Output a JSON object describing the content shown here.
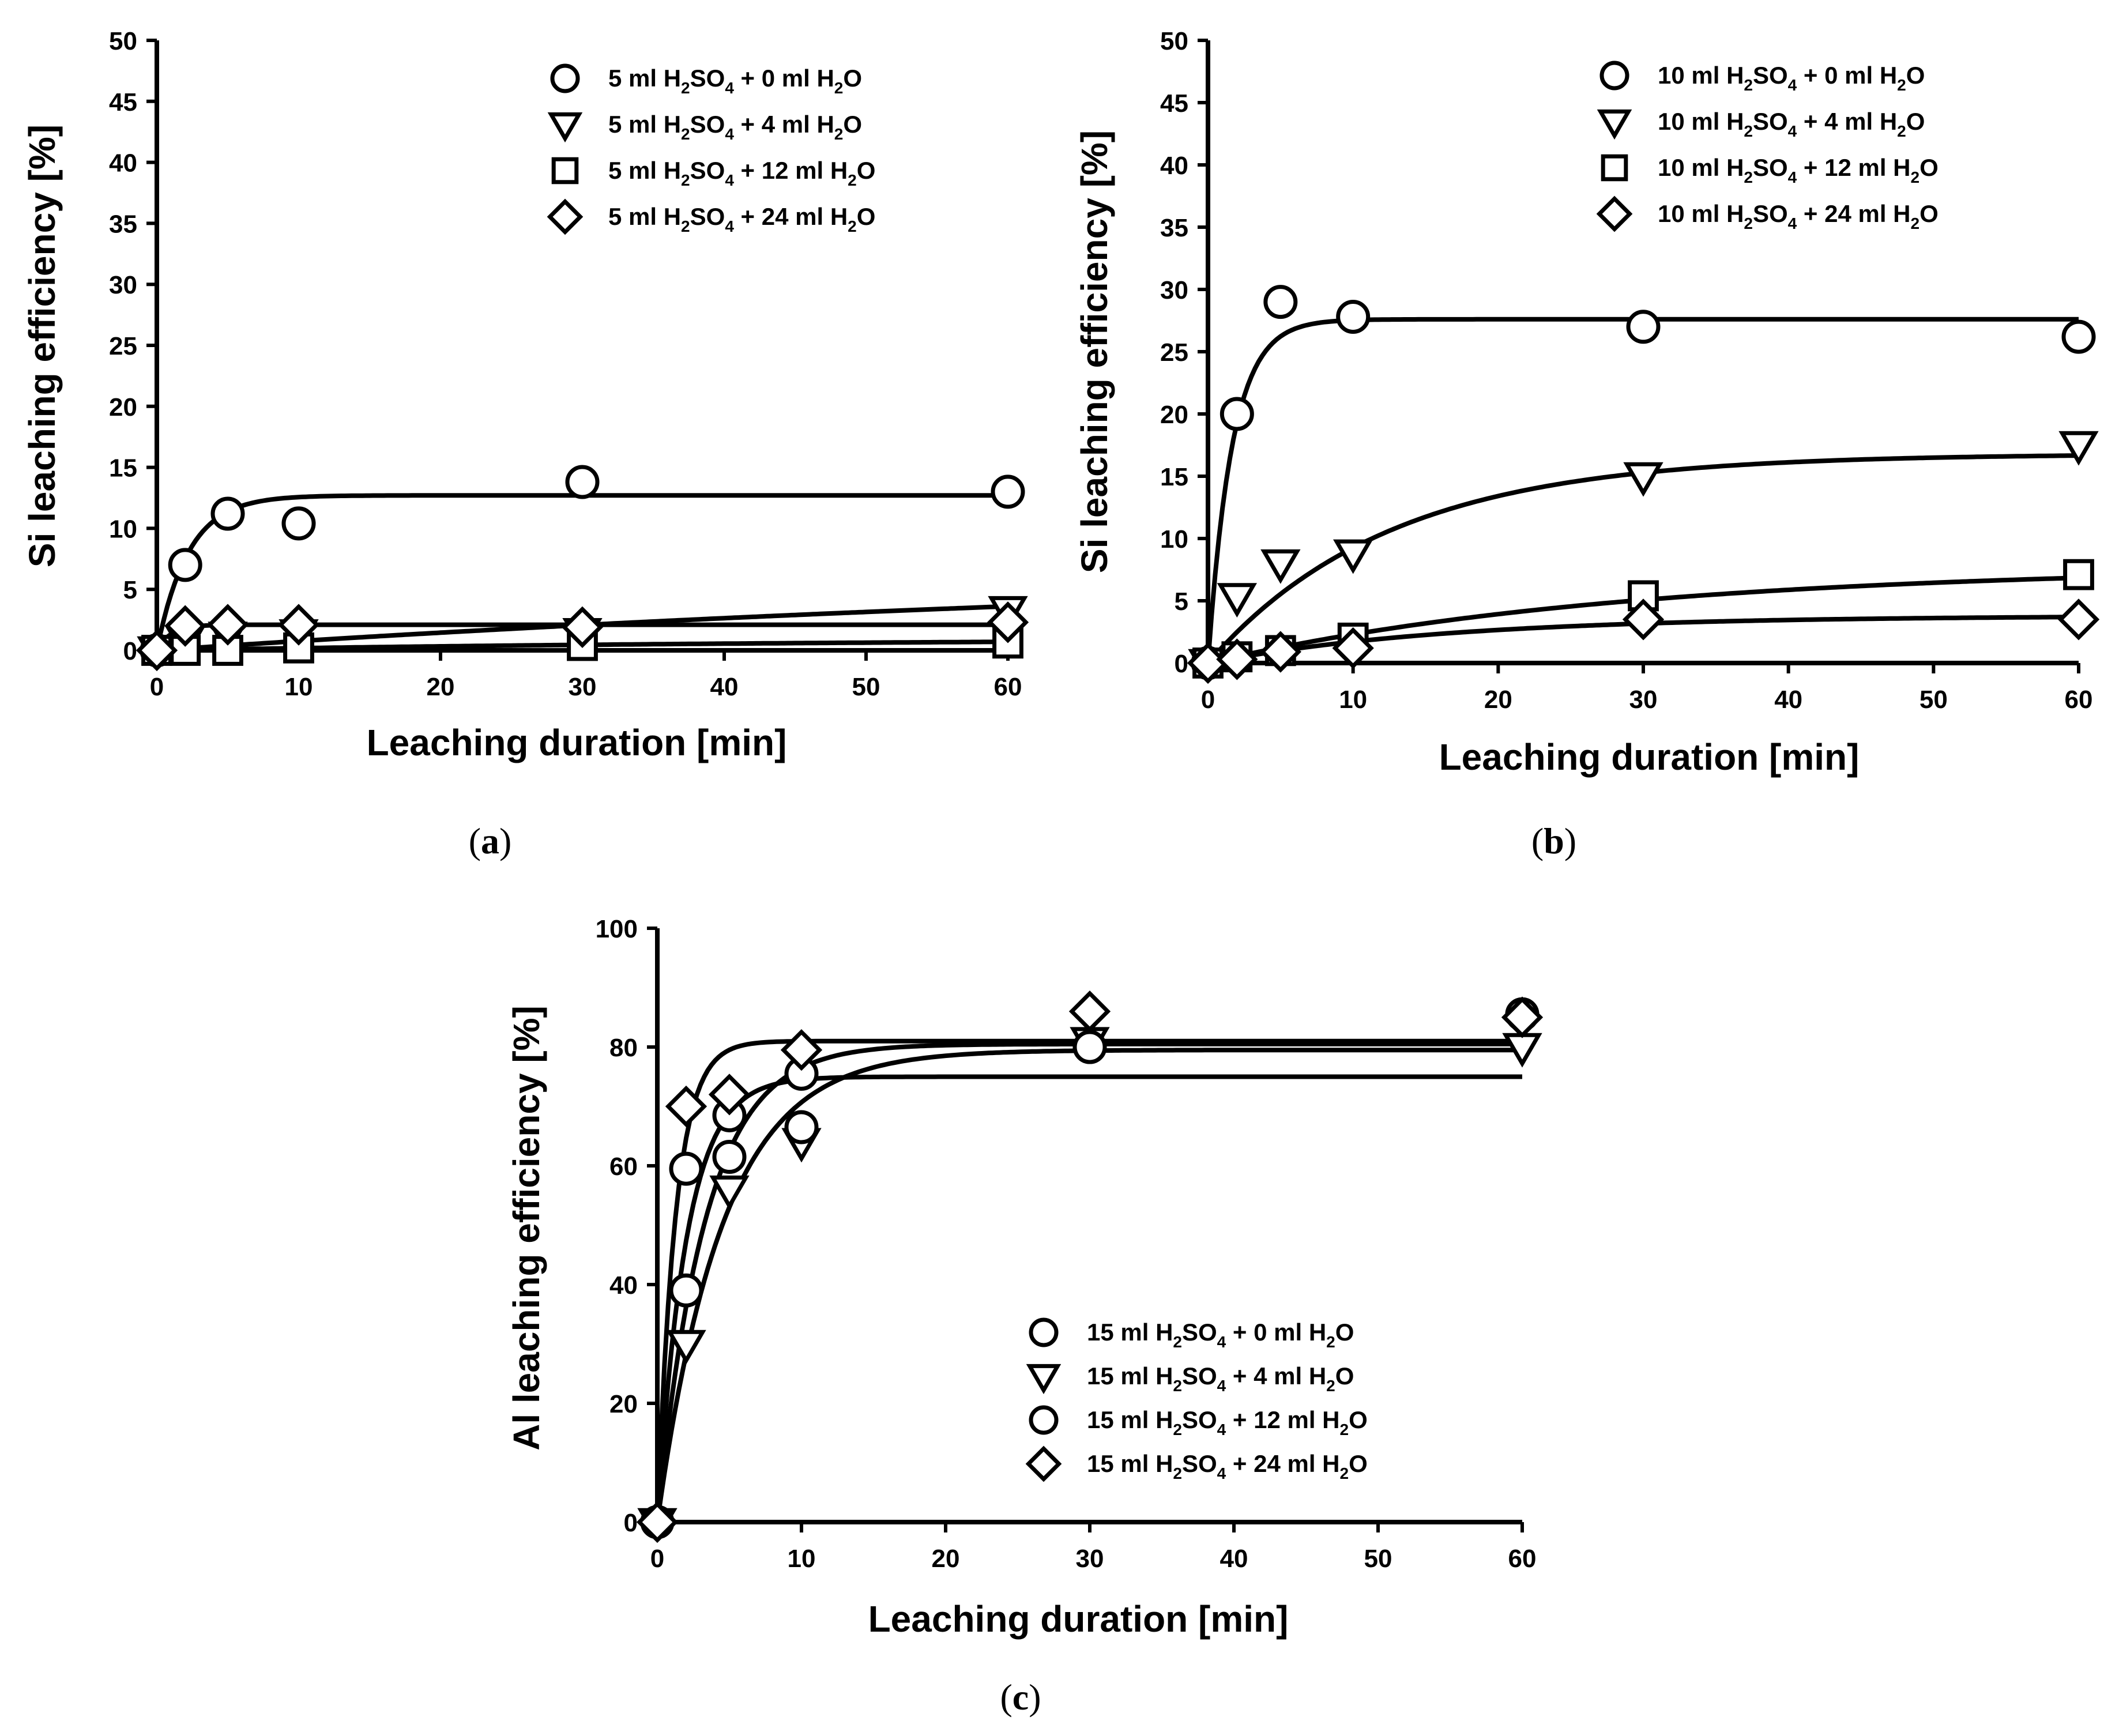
{
  "chart_data": [
    {
      "type": "scatter",
      "panel_label": "a",
      "xlabel": "Leaching duration [min]",
      "ylabel": "Si leaching efficiency [%]",
      "xlim": [
        0,
        60
      ],
      "ylim": [
        0,
        50
      ],
      "xticks": [
        0,
        10,
        20,
        30,
        40,
        50,
        60
      ],
      "yticks": [
        0,
        5,
        10,
        15,
        20,
        25,
        30,
        35,
        40,
        45,
        50
      ],
      "legend_position": "top-right",
      "series": [
        {
          "marker": "circle",
          "legend": {
            "pre": "5 ml H",
            "s1": "2",
            "mid": "SO",
            "s2": "4",
            "post": " + 0 ml H",
            "s3": "2",
            "end": "O"
          },
          "x": [
            0,
            2,
            5,
            10,
            30,
            60
          ],
          "y": [
            0,
            7,
            11.2,
            10.4,
            13.8,
            13.0
          ],
          "fit": {
            "a": 12.7,
            "k": 0.45
          }
        },
        {
          "marker": "triangle",
          "legend": {
            "pre": "5 ml H",
            "s1": "2",
            "mid": "SO",
            "s2": "4",
            "post": " + 4 ml H",
            "s3": "2",
            "end": "O"
          },
          "x": [
            0,
            2,
            5,
            10,
            30,
            60
          ],
          "y": [
            0,
            0.8,
            1.2,
            1.4,
            1.5,
            3.3
          ],
          "fit": {
            "a": 8.0,
            "k": 0.01
          }
        },
        {
          "marker": "square",
          "legend": {
            "pre": "5 ml H",
            "s1": "2",
            "mid": "SO",
            "s2": "4",
            "post": " + 12 ml H",
            "s3": "2",
            "end": "O"
          },
          "x": [
            0,
            2,
            5,
            10,
            30,
            60
          ],
          "y": [
            0,
            0,
            0,
            0.2,
            0.4,
            0.6
          ],
          "fit": {
            "a": 1.0,
            "k": 0.02
          }
        },
        {
          "marker": "diamond",
          "legend": {
            "pre": "5 ml H",
            "s1": "2",
            "mid": "SO",
            "s2": "4",
            "post": " + 24 ml H",
            "s3": "2",
            "end": "O"
          },
          "x": [
            0,
            2,
            5,
            10,
            30,
            60
          ],
          "y": [
            0,
            2.0,
            2.1,
            2.1,
            1.9,
            2.3
          ],
          "fit": {
            "a": 2.1,
            "k": 1.0
          }
        }
      ]
    },
    {
      "type": "scatter",
      "panel_label": "b",
      "xlabel": "Leaching duration [min]",
      "ylabel": "Si leaching efficiency [%]",
      "xlim": [
        0,
        60
      ],
      "ylim": [
        0,
        50
      ],
      "xticks": [
        0,
        10,
        20,
        30,
        40,
        50,
        60
      ],
      "yticks": [
        0,
        5,
        10,
        15,
        20,
        25,
        30,
        35,
        40,
        45,
        50
      ],
      "legend_position": "top-right",
      "series": [
        {
          "marker": "circle",
          "legend": {
            "pre": "10 ml H",
            "s1": "2",
            "mid": "SO",
            "s2": "4",
            "post": " + 0 ml H",
            "s3": "2",
            "end": "O"
          },
          "x": [
            0,
            2,
            5,
            10,
            30,
            60
          ],
          "y": [
            0,
            20,
            29,
            27.8,
            27,
            26.2
          ],
          "fit": {
            "a": 27.6,
            "k": 0.6
          }
        },
        {
          "marker": "triangle",
          "legend": {
            "pre": "10 ml H",
            "s1": "2",
            "mid": "SO",
            "s2": "4",
            "post": " + 4 ml H",
            "s3": "2",
            "end": "O"
          },
          "x": [
            0,
            2,
            5,
            10,
            30,
            60
          ],
          "y": [
            0,
            5.3,
            8.0,
            8.8,
            15.0,
            17.5
          ],
          "fit": {
            "a": 16.8,
            "k": 0.08
          }
        },
        {
          "marker": "square",
          "legend": {
            "pre": "10 ml H",
            "s1": "2",
            "mid": "SO",
            "s2": "4",
            "post": " + 12 ml H",
            "s3": "2",
            "end": "O"
          },
          "x": [
            0,
            2,
            5,
            10,
            30,
            60
          ],
          "y": [
            0,
            0.5,
            1.0,
            2.0,
            5.4,
            7.1
          ],
          "fit": {
            "a": 7.8,
            "k": 0.035
          }
        },
        {
          "marker": "diamond",
          "legend": {
            "pre": "10 ml H",
            "s1": "2",
            "mid": "SO",
            "s2": "4",
            "post": " + 24 ml H",
            "s3": "2",
            "end": "O"
          },
          "x": [
            0,
            2,
            5,
            10,
            30,
            60
          ],
          "y": [
            0,
            0.3,
            0.9,
            1.2,
            3.5,
            3.5
          ],
          "fit": {
            "a": 3.8,
            "k": 0.06
          }
        }
      ]
    },
    {
      "type": "scatter",
      "panel_label": "c",
      "xlabel": "Leaching duration [min]",
      "ylabel": "Al leaching efficiency [%]",
      "xlim": [
        0,
        60
      ],
      "ylim": [
        0,
        100
      ],
      "xticks": [
        0,
        10,
        20,
        30,
        40,
        50,
        60
      ],
      "yticks": [
        0,
        20,
        40,
        60,
        80,
        100
      ],
      "legend_position": "bottom-right",
      "series": [
        {
          "marker": "circle",
          "legend": {
            "pre": "15 ml H",
            "s1": "2",
            "mid": "SO",
            "s2": "4",
            "post": " + 0 ml H",
            "s3": "2",
            "end": "O"
          },
          "x": [
            0,
            2,
            5,
            10,
            30,
            60
          ],
          "y": [
            0,
            59.5,
            68.5,
            75.5,
            80,
            85.5
          ],
          "fit": {
            "a": 75,
            "k": 0.5
          }
        },
        {
          "marker": "triangle",
          "legend": {
            "pre": "15 ml H",
            "s1": "2",
            "mid": "SO",
            "s2": "4",
            "post": " + 4 ml H",
            "s3": "2",
            "end": "O"
          },
          "x": [
            0,
            2,
            5,
            10,
            30,
            60
          ],
          "y": [
            0,
            30,
            56,
            64,
            81,
            80
          ],
          "fit": {
            "a": 79.5,
            "k": 0.22
          }
        },
        {
          "marker": "circle",
          "legend": {
            "pre": "15 ml H",
            "s1": "2",
            "mid": "SO",
            "s2": "4",
            "post": " + 12 ml H",
            "s3": "2",
            "end": "O"
          },
          "x": [
            0,
            2,
            5,
            10,
            30,
            60
          ],
          "y": [
            0,
            39,
            61.5,
            66.5,
            80,
            85.5
          ],
          "fit": {
            "a": 80.5,
            "k": 0.3
          }
        },
        {
          "marker": "diamond",
          "legend": {
            "pre": "15 ml H",
            "s1": "2",
            "mid": "SO",
            "s2": "4",
            "post": " + 24 ml H",
            "s3": "2",
            "end": "O"
          },
          "x": [
            0,
            2,
            5,
            10,
            30,
            60
          ],
          "y": [
            0,
            70,
            72,
            79.5,
            86,
            85
          ],
          "fit": {
            "a": 81,
            "k": 0.8
          }
        }
      ]
    }
  ]
}
